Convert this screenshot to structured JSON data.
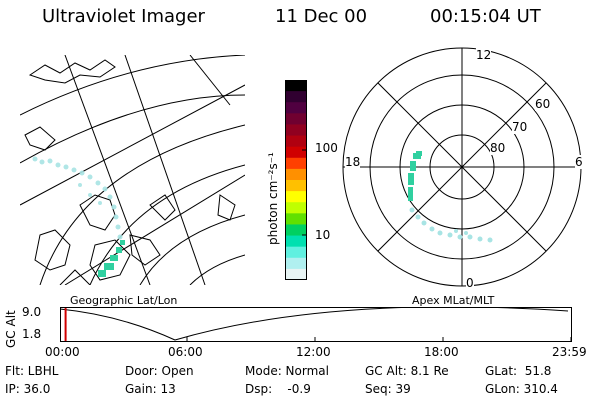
{
  "header": {
    "title": "Ultraviolet Imager",
    "date": "11 Dec 00",
    "time": "00:15:04 UT"
  },
  "geo_panel": {
    "label": "Geographic Lat/Lon"
  },
  "mag_panel": {
    "label": "Apex MLat/MLT",
    "mlt_labels": [
      "12",
      "18",
      "6",
      "0"
    ],
    "mlat_labels": [
      "60",
      "70",
      "80"
    ]
  },
  "colorbar": {
    "unit_label": "photon cm⁻²s⁻¹",
    "ticks": [
      "100",
      "10"
    ],
    "colors": [
      "#000000",
      "#300030",
      "#500040",
      "#700030",
      "#900020",
      "#b00010",
      "#d00000",
      "#ff4000",
      "#ff9000",
      "#ffc000",
      "#ffff00",
      "#c0ff00",
      "#60e000",
      "#00d060",
      "#00e0b0",
      "#60f0e0",
      "#b0f0f0",
      "#e8f4f4"
    ]
  },
  "timeline": {
    "axis_label": "GC Alt",
    "y_ticks": [
      "9.0",
      "1.8"
    ],
    "x_ticks": [
      "00:00",
      "06:00",
      "12:00",
      "18:00",
      "23:59"
    ],
    "current_time_fraction": 0.009
  },
  "info": {
    "flt": "Flt: LBHL",
    "ip": "IP: 36.0",
    "door": "Door: Open",
    "gain": "Gain: 13",
    "mode": "Mode: Normal",
    "dsp": "Dsp:    -0.9",
    "gc_alt": "GC Alt: 8.1 Re",
    "seq": "Seq: 39",
    "glat": "GLat:  51.8",
    "glon": "GLon: 310.4"
  }
}
